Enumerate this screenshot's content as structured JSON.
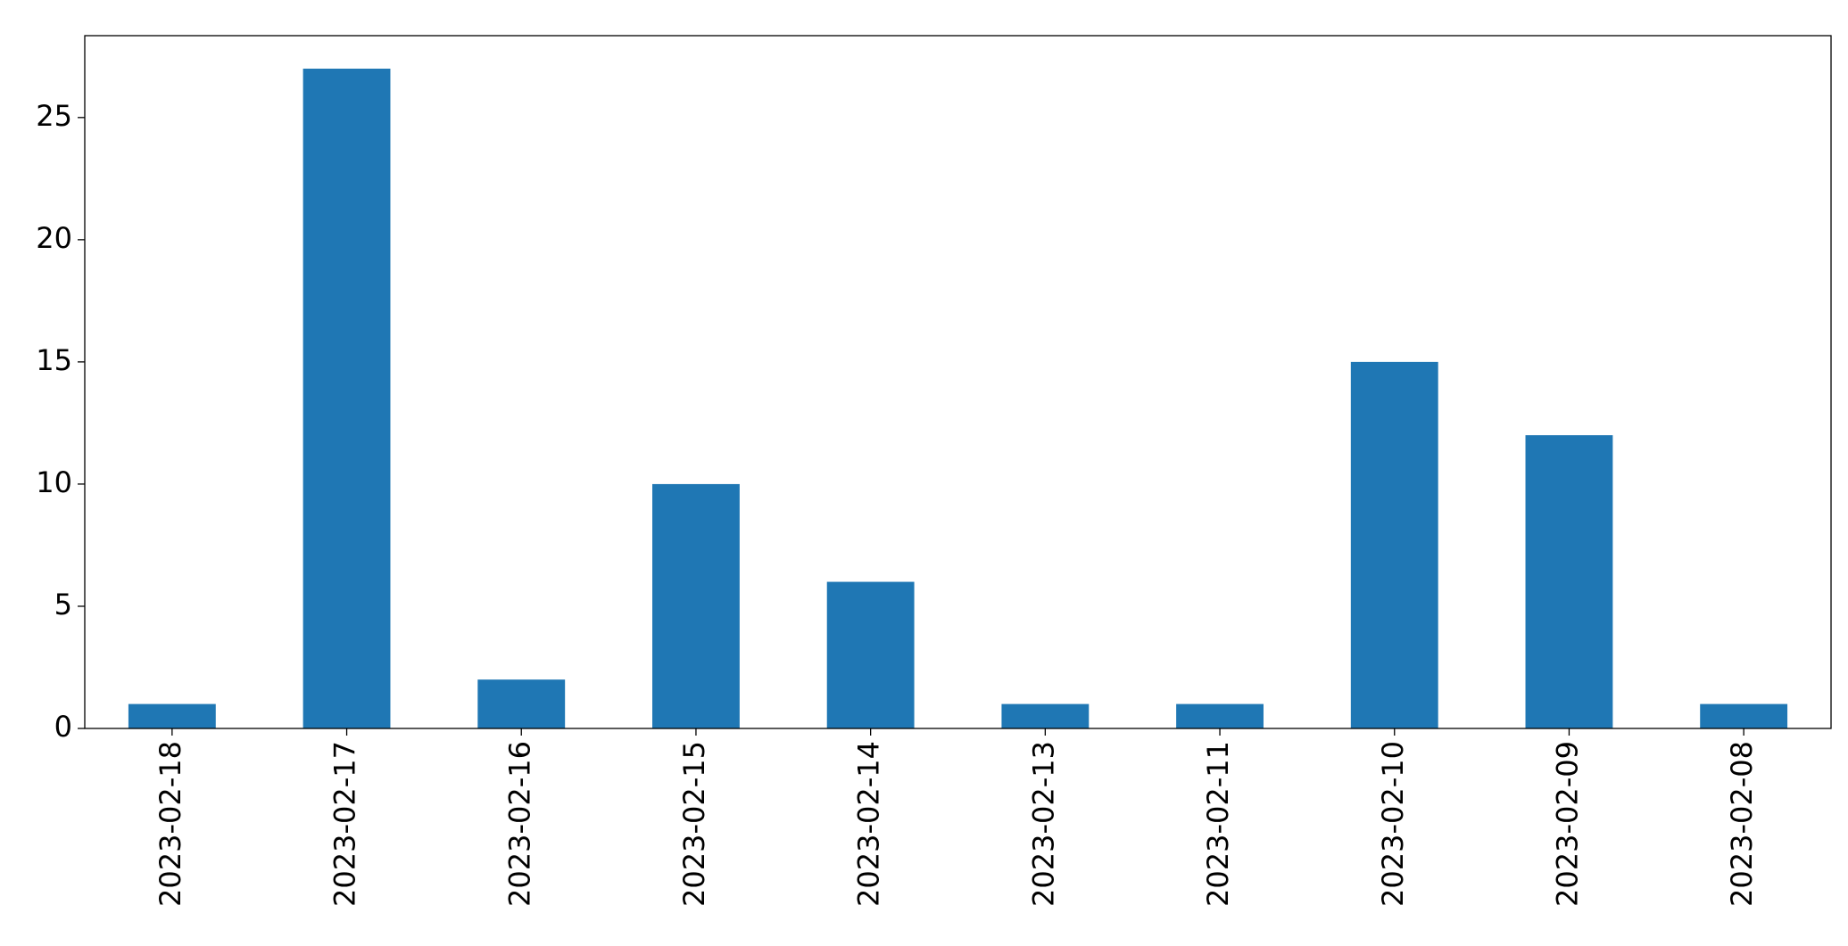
{
  "chart_data": {
    "type": "bar",
    "categories": [
      "2023-02-18",
      "2023-02-17",
      "2023-02-16",
      "2023-02-15",
      "2023-02-14",
      "2023-02-13",
      "2023-02-11",
      "2023-02-10",
      "2023-02-09",
      "2023-02-08"
    ],
    "values": [
      1,
      27,
      2,
      10,
      6,
      1,
      1,
      15,
      12,
      1
    ],
    "color": "#1f77b4",
    "ylim": [
      0,
      28.35
    ],
    "yticks": [
      0,
      5,
      10,
      15,
      20,
      25
    ],
    "grid": false
  }
}
